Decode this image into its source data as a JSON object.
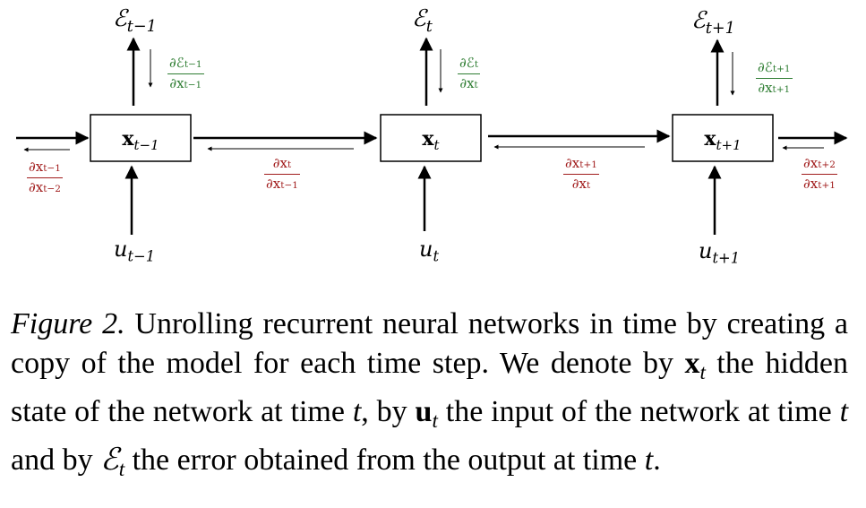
{
  "figure": {
    "time_steps": [
      {
        "error_main": "ℰ",
        "error_sub": "t−1",
        "state_main": "x",
        "state_sub": "t−1",
        "input_main": "u",
        "input_sub": "t−1",
        "grad_error": {
          "num_main": "∂ℰ",
          "num_sub": "t−1",
          "den_main": "∂x",
          "den_sub": "t−1"
        }
      },
      {
        "error_main": "ℰ",
        "error_sub": "t",
        "state_main": "x",
        "state_sub": "t",
        "input_main": "u",
        "input_sub": "t",
        "grad_error": {
          "num_main": "∂ℰ",
          "num_sub": "t",
          "den_main": "∂x",
          "den_sub": "t"
        }
      },
      {
        "error_main": "ℰ",
        "error_sub": "t+1",
        "state_main": "x",
        "state_sub": "t+1",
        "input_main": "u",
        "input_sub": "t+1",
        "grad_error": {
          "num_main": "∂ℰ",
          "num_sub": "t+1",
          "den_main": "∂x",
          "den_sub": "t+1"
        }
      }
    ],
    "state_gradients": [
      {
        "num_main": "∂x",
        "num_sub": "t−1",
        "den_main": "∂x",
        "den_sub": "t−2"
      },
      {
        "num_main": "∂x",
        "num_sub": "t",
        "den_main": "∂x",
        "den_sub": "t−1"
      },
      {
        "num_main": "∂x",
        "num_sub": "t+1",
        "den_main": "∂x",
        "den_sub": "t"
      },
      {
        "num_main": "∂x",
        "num_sub": "t+2",
        "den_main": "∂x",
        "den_sub": "t+1"
      }
    ],
    "colors": {
      "forward": "#000000",
      "error_gradient": "#2e7d32",
      "state_gradient": "#a11c1c"
    }
  },
  "caption": {
    "figure_label": "Figure 2.",
    "part1": " Unrolling recurrent neural networks in time by creating a copy of the model for each time step. We denote by ",
    "x_sym": "x",
    "t_sub": "t",
    "part2": " the hidden state of the network at time ",
    "t_sym": "t",
    "part3": ", by ",
    "u_sym": "u",
    "part4": " the input of the network at time ",
    "part5": " and by ",
    "e_sym": "ℰ",
    "part6": " the error obtained from the output at time ",
    "part7": "."
  }
}
